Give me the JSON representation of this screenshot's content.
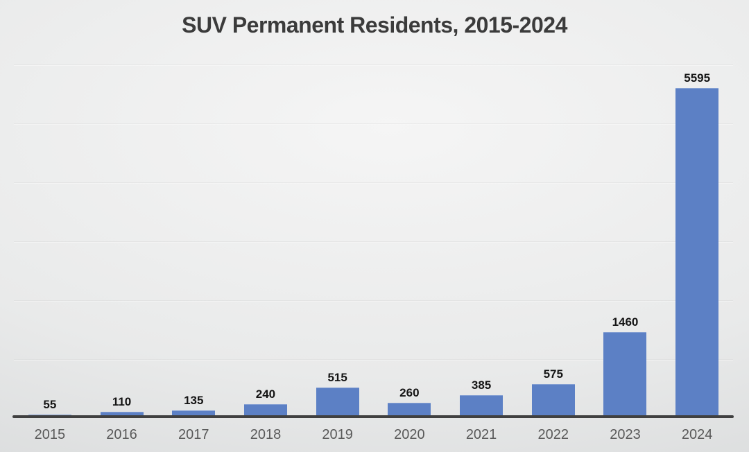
{
  "chart_data": {
    "type": "bar",
    "title": "SUV Permanent Residents, 2015-2024",
    "categories": [
      "2015",
      "2016",
      "2017",
      "2018",
      "2019",
      "2020",
      "2021",
      "2022",
      "2023",
      "2024"
    ],
    "values": [
      55,
      110,
      135,
      240,
      515,
      260,
      385,
      575,
      1460,
      5595
    ],
    "xlabel": "",
    "ylabel": "",
    "ylim": [
      0,
      6000
    ],
    "gridline_step": 1000,
    "grid": true,
    "legend": false,
    "y_tick_labels_visible": false,
    "colors": {
      "bar": "#5c80c5",
      "title": "#3b3b3b",
      "data_label": "#141414",
      "tick_label": "#595959",
      "axis_line": "#404040",
      "gridline": "#ffffff",
      "background_center": "#f5f5f5",
      "background_edge": "#d5d7d8"
    }
  }
}
